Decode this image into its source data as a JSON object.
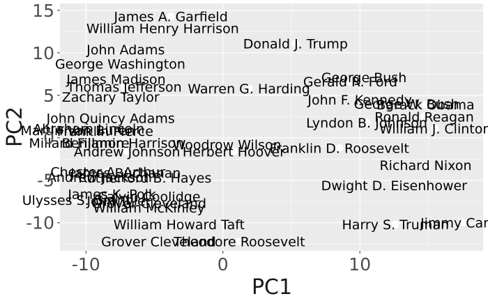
{
  "chart_data": {
    "type": "scatter",
    "xlabel": "PC1",
    "ylabel": "PC2",
    "xlim": [
      -11.9,
      19.0
    ],
    "ylim": [
      -13.3,
      15.8
    ],
    "xticks": [
      -10,
      0,
      10
    ],
    "yticks": [
      -10,
      -5,
      0,
      5,
      10,
      15
    ],
    "grid": true,
    "panel_color": "#ebebeb",
    "grid_color": "#ffffff",
    "point_color": "#ffffff",
    "points": [
      {
        "label": "James A. Garfield",
        "x": -3.8,
        "y": 14.3
      },
      {
        "label": "William Henry Harrison",
        "x": -4.4,
        "y": 12.9
      },
      {
        "label": "Donald J. Trump",
        "x": 5.3,
        "y": 11.1
      },
      {
        "label": "John Adams",
        "x": -7.1,
        "y": 10.4
      },
      {
        "label": "George Washington",
        "x": -7.5,
        "y": 8.7
      },
      {
        "label": "James Madison",
        "x": -7.8,
        "y": 6.9
      },
      {
        "label": "George Bush",
        "x": 10.3,
        "y": 7.1
      },
      {
        "label": "Gerald R. Ford",
        "x": 9.3,
        "y": 6.6
      },
      {
        "label": "Thomas Jefferson",
        "x": -7.2,
        "y": 6.0
      },
      {
        "label": "Warren G. Harding",
        "x": 1.9,
        "y": 5.8
      },
      {
        "label": "Zachary Taylor",
        "x": -8.2,
        "y": 4.8
      },
      {
        "label": "John F. Kennedy",
        "x": 10.0,
        "y": 4.5
      },
      {
        "label": "George W. Bush",
        "x": 13.4,
        "y": 4.0
      },
      {
        "label": "Barack Obama",
        "x": 14.8,
        "y": 3.9
      },
      {
        "label": "John Quincy Adams",
        "x": -8.2,
        "y": 2.3
      },
      {
        "label": "Ronald Reagan",
        "x": 14.7,
        "y": 2.5
      },
      {
        "label": "Lyndon B. Johnson",
        "x": 10.5,
        "y": 1.8
      },
      {
        "label": "William J. Clinton",
        "x": 15.5,
        "y": 1.1
      },
      {
        "label": "Abraham Lincoln",
        "x": -9.8,
        "y": 1.1
      },
      {
        "label": "Martin Van Buren",
        "x": -10.6,
        "y": 0.9
      },
      {
        "label": "Franklin Pierce",
        "x": -8.6,
        "y": 0.8
      },
      {
        "label": "Millard Fillmore",
        "x": -10.5,
        "y": -0.6
      },
      {
        "label": "Benjamin Harrison",
        "x": -7.3,
        "y": -0.6
      },
      {
        "label": "Woodrow Wilson",
        "x": 0.3,
        "y": -0.8
      },
      {
        "label": "Franklin D. Roosevelt",
        "x": 8.5,
        "y": -1.2
      },
      {
        "label": "Andrew Johnson",
        "x": -7.0,
        "y": -1.6
      },
      {
        "label": "Herbert Hoover",
        "x": 0.8,
        "y": -1.6
      },
      {
        "label": "Richard Nixon",
        "x": 14.8,
        "y": -3.2
      },
      {
        "label": "Chester A. Arthur",
        "x": -8.4,
        "y": -4.0
      },
      {
        "label": "James Buchanan",
        "x": -7.1,
        "y": -4.1
      },
      {
        "label": "Andrew Jackson",
        "x": -9.0,
        "y": -4.6
      },
      {
        "label": "Rutherford B. Hayes",
        "x": -5.7,
        "y": -4.7
      },
      {
        "label": "Dwight D. Eisenhower",
        "x": 12.5,
        "y": -5.6
      },
      {
        "label": "James K. Polk",
        "x": -8.1,
        "y": -6.6
      },
      {
        "label": "Calvin Coolidge",
        "x": -5.4,
        "y": -6.9
      },
      {
        "label": "Ulysses S. Grant",
        "x": -10.7,
        "y": -7.3
      },
      {
        "label": "John Tyler",
        "x": -7.6,
        "y": -7.4
      },
      {
        "label": "Grover Cleveland",
        "x": -5.4,
        "y": -7.7
      },
      {
        "label": "William McKinley",
        "x": -5.4,
        "y": -8.2
      },
      {
        "label": "William Howard Taft",
        "x": -3.2,
        "y": -10.2
      },
      {
        "label": "Harry S. Truman",
        "x": 12.6,
        "y": -10.2
      },
      {
        "label": "Jimmy Carter",
        "x": 17.6,
        "y": -10.0
      },
      {
        "label": "Grover Cleveland",
        "x": -4.7,
        "y": -12.2
      },
      {
        "label": "Theodore Roosevelt",
        "x": 1.2,
        "y": -12.2
      }
    ]
  }
}
